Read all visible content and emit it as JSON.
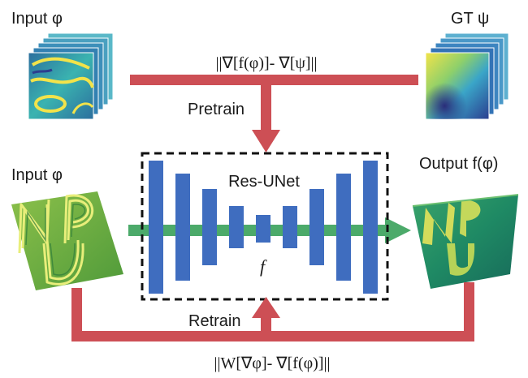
{
  "labels": {
    "input_top": "Input φ",
    "gt": "GT ψ",
    "input_mid": "Input φ",
    "output": "Output f(φ)",
    "pretrain": "Pretrain",
    "retrain": "Retrain",
    "network": "Res-UNet",
    "function": "f"
  },
  "equations": {
    "pretrain_loss": "||∇[f(φ)]- ∇[ψ]||",
    "retrain_loss": "||W[∇φ]- ∇[f(φ)]||"
  },
  "colors": {
    "red_arrow": "#cd4f55",
    "green_arrow": "#4caa6a",
    "unet_block": "#3f6dbf",
    "dashed_box": "#111111"
  },
  "icons": {
    "input_stack": "wrapped-phase-stack",
    "gt_stack": "ground-truth-phase-stack",
    "input_surface": "wrapped-np-u-surface",
    "output_surface": "unwrapped-np-u-surface"
  }
}
